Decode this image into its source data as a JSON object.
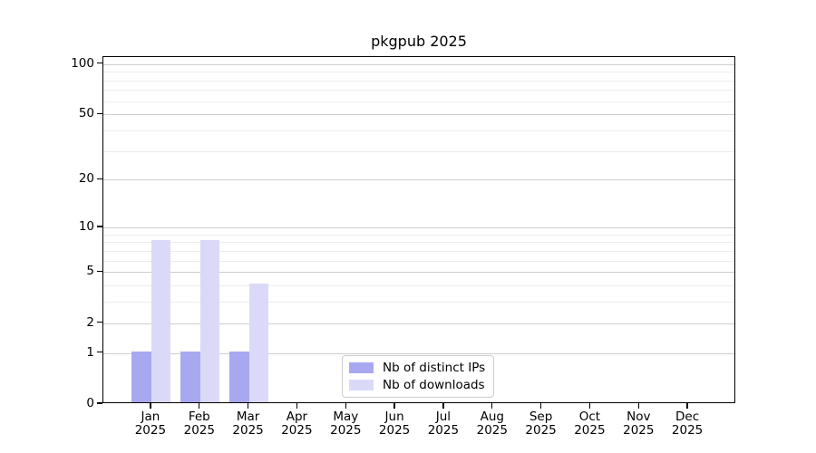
{
  "chart_data": {
    "type": "bar",
    "title": "pkgpub 2025",
    "x_months": [
      "Jan",
      "Feb",
      "Mar",
      "Apr",
      "May",
      "Jun",
      "Jul",
      "Aug",
      "Sep",
      "Oct",
      "Nov",
      "Dec"
    ],
    "x_year": "2025",
    "series": [
      {
        "name": "Nb of distinct IPs",
        "color": "#a8a8f0",
        "values": [
          1,
          1,
          1,
          0,
          0,
          0,
          0,
          0,
          0,
          0,
          0,
          0
        ]
      },
      {
        "name": "Nb of downloads",
        "color": "#dadaf8",
        "values": [
          8,
          8,
          4,
          0,
          0,
          0,
          0,
          0,
          0,
          0,
          0,
          0
        ]
      }
    ],
    "yscale": "log1p",
    "ylim": [
      0,
      110
    ],
    "yticks_major": [
      0,
      1,
      2,
      5,
      10,
      20,
      50,
      100
    ],
    "yticks_minor": [
      3,
      4,
      6,
      7,
      8,
      9,
      30,
      40,
      60,
      70,
      80,
      90
    ],
    "grid": true,
    "legend_position": "lower-center",
    "colors": {
      "grid_major": "#cdcdcd",
      "grid_minor": "#ececec",
      "axis": "#000000",
      "background": "#ffffff"
    }
  }
}
